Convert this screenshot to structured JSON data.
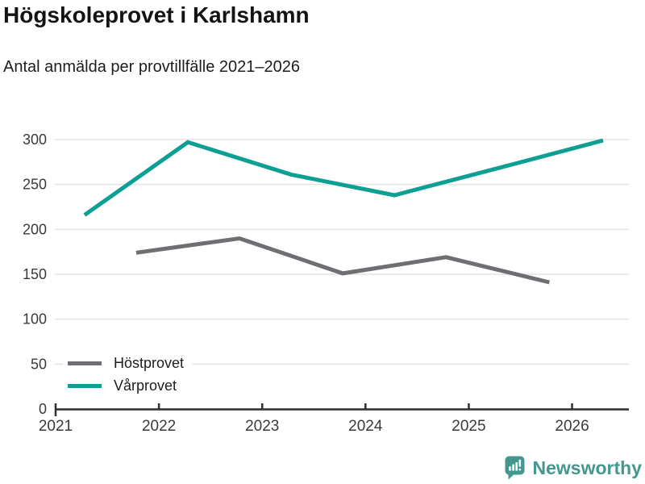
{
  "header": {
    "title": "Högskoleprovet i Karlshamn",
    "subtitle": "Antal anmälda per provtillfälle 2021–2026"
  },
  "chart_data": {
    "type": "line",
    "title": "Högskoleprovet i Karlshamn",
    "subtitle": "Antal anmälda per provtillfälle 2021–2026",
    "xlabel": "",
    "ylabel": "",
    "xlim": [
      2021,
      2026.55
    ],
    "ylim": [
      0,
      300
    ],
    "x_ticks": [
      2021,
      2022,
      2023,
      2024,
      2025,
      2026
    ],
    "y_ticks": [
      0,
      50,
      100,
      150,
      200,
      250,
      300
    ],
    "grid": "horizontal-only",
    "legend_position": "inside-bottom-left",
    "series": [
      {
        "name": "Höstprovet",
        "color": "#6e6e73",
        "x": [
          2021.78,
          2022.78,
          2023.78,
          2024.78,
          2025.78
        ],
        "values": [
          174,
          190,
          151,
          169,
          141
        ]
      },
      {
        "name": "Vårprovet",
        "color": "#0d9e94",
        "x": [
          2021.28,
          2022.28,
          2023.28,
          2024.28,
          2025.28,
          2026.3
        ],
        "values": [
          216,
          297,
          261,
          238,
          268,
          299
        ]
      }
    ],
    "style": {
      "grid_color": "#e3e3e3",
      "axis_color": "#2f2f2f",
      "tick_label_color": "#3a3a3a",
      "line_width": 5
    }
  },
  "footer": {
    "brand": "Newsworthy",
    "brand_color": "#44968f",
    "logo_icon": "bar-chart-speech-bubble-icon"
  }
}
